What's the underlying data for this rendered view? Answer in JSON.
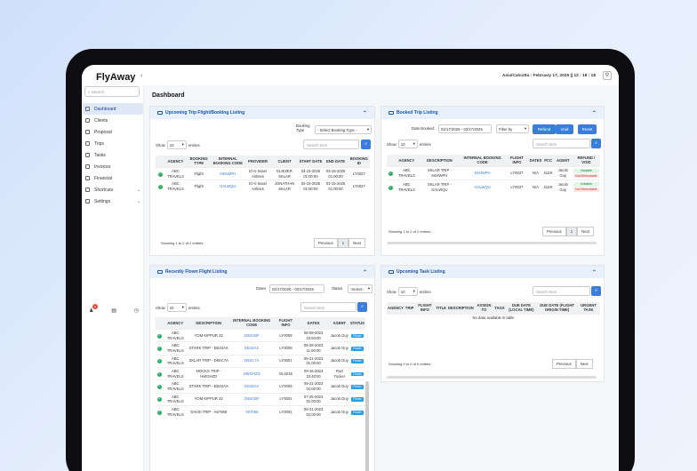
{
  "brand": "FlyAway",
  "topbar": {
    "datetime": "Asia/Calcutta : February 17, 2025 || 12 : 18 : 18"
  },
  "sidebar": {
    "search_placeholder": "Search",
    "items": [
      {
        "label": "Dashboard",
        "icon": "dashboard-icon"
      },
      {
        "label": "Clients",
        "icon": "users-icon"
      },
      {
        "label": "Proposal",
        "icon": "document-icon"
      },
      {
        "label": "Trips",
        "icon": "plane-icon"
      },
      {
        "label": "Tasks",
        "icon": "tasks-icon"
      },
      {
        "label": "Invoices",
        "icon": "invoice-icon"
      },
      {
        "label": "Financial",
        "icon": "finance-icon"
      },
      {
        "label": "Shortcuts",
        "icon": "shortcut-icon"
      },
      {
        "label": "Settings",
        "icon": "gear-icon"
      }
    ],
    "notif_count": "3"
  },
  "page_title": "Dashboard",
  "upcoming": {
    "title": "Upcoming Trip Flight/Booking Listing",
    "booking_type_label": "Booking Type",
    "booking_type_value": "- Select Booking Type -",
    "show": "Show",
    "entries_value": "10",
    "entries": "entries",
    "search_placeholder": "Search Item",
    "headers": [
      "AGENCY",
      "BOOKING TYPE",
      "INTERNAL BOOKING CODE",
      "PROVIDER",
      "CLIENT",
      "START DATE",
      "END DATE",
      "BOOKING ID"
    ],
    "rows": [
      [
        "ABC TRAVELS",
        "Flight",
        "K6HWPH",
        "El Al Israel Airlines",
        "ELIEZER SKLAR",
        "03-15-2025 01:00:00",
        "03-15-2025 01:00:00",
        "LY0027"
      ],
      [
        "ABC TRAVELS",
        "Flight",
        "GALWQU",
        "El Al Israel Airlines",
        "JONATHAN SKLAR",
        "03-15-2025 01:00:00",
        "03-15-2025 01:00:00",
        "LY0027"
      ]
    ],
    "footer": "Showing 1 to 2 of 2 entries",
    "prev": "Previous",
    "page": "1",
    "next": "Next"
  },
  "booked": {
    "title": "Booked Trip Listing",
    "date_label": "Date Booked:",
    "date_value": "02/17/2025 - 02/17/2025",
    "filter": "Filter by",
    "refund": "Refund",
    "void": "Void",
    "reset": "Reset",
    "show": "Show",
    "entries_value": "10",
    "entries": "entries",
    "search_placeholder": "Search Item",
    "headers": [
      "AGENCY",
      "DESCRIPTION",
      "INTERNAL BOOKING CODE",
      "FLIGHT INFO",
      "DATES",
      "PCC",
      "AGENT",
      "REFUND / VOID"
    ],
    "rows": [
      [
        "ABC TRAVELS",
        "SKLAR TRIP - K6HWPH",
        "K6HWPH",
        "LY0027",
        "N/A",
        "2LEK",
        "Jacob Guy",
        "Voidable",
        "Not Refundable"
      ],
      [
        "ABC TRAVELS",
        "SKLAR TRIP - GALWQU",
        "GALWQU",
        "LY0027",
        "N/A",
        "2LEK",
        "Jacob Guy",
        "Voidable",
        "Not Refundable"
      ]
    ],
    "footer": "Showing 1 to 2 of 2 entries",
    "prev": "Previous",
    "page": "1",
    "next": "Next"
  },
  "flown": {
    "title": "Recently Flown Flight Listing",
    "dates_label": "Dates",
    "dates_value": "02/17/2025 - 02/17/2025",
    "status_label": "Status",
    "status_value": "-Select-",
    "show": "Show",
    "entries_value": "10",
    "entries": "entries",
    "search_placeholder": "Search Item",
    "headers": [
      "AGENCY",
      "DESCRIPTION",
      "INTERNAL BOOKING CODE",
      "FLIGHT INFO",
      "DATES",
      "AGENT",
      "STATUS"
    ],
    "rows": [
      [
        "ABC TRAVELS",
        "YOM KIPPUR 22",
        "D6SCBF",
        "LY0008",
        "08-09-2023 23:50:00",
        "Jacob Guy",
        "Flown"
      ],
      [
        "ABC TRAVELS",
        "STARK TRIP - EBJSAX",
        "EBJSAX",
        "LY0008",
        "08-28-2023 11:00:00",
        "Jacob Guy",
        "Flown"
      ],
      [
        "ABC TRAVELS",
        "SKLAR TRIP - D6SC7A",
        "D6SC7A",
        "LY0001",
        "09-21-2023 01:00:00",
        "Jacob Guy",
        "Flown"
      ],
      [
        "ABC TRAVELS",
        "MOCKS TRIP - HWGHZD",
        "HWGHZD",
        "DL0236",
        "09-16-2023 23:40:00",
        "Rod Tucker",
        "Flown"
      ],
      [
        "ABC TRAVELS",
        "STARK TRIP - EBJSAX",
        "EBJSAX",
        "LY0008",
        "09-21-2023 01:00:00",
        "Jacob Guy",
        "Flown"
      ],
      [
        "ABC TRAVELS",
        "YOM KIPPUR 22",
        "D6SCBF",
        "LY0001",
        "07-25-2023 01:00:00",
        "Jacob Guy",
        "Flown"
      ],
      [
        "ABC TRAVELS",
        "DAVSI TRIP - A67068",
        "A67068",
        "LY0001",
        "09-21-2023 01:00:00",
        "Jacob Guy",
        "Flown"
      ]
    ]
  },
  "task": {
    "title": "Upcoming Task Listing",
    "show": "Show",
    "entries_value": "10",
    "entries": "entries",
    "search_placeholder": "Search Item",
    "headers": [
      "AGENCY",
      "TRIP",
      "FLIGHT INFO",
      "TITLE",
      "DESCRIPTION",
      "ASSIGN TO",
      "TAGS",
      "DUE DATE (LOCAL TIME)",
      "DUE DATE (FLIGHT ORIGIN TIME)",
      "URGENT TASK"
    ],
    "empty": "No data available in table",
    "footer": "Showing 0 to 0 of 0 entries",
    "prev": "Previous",
    "next": "Next"
  }
}
